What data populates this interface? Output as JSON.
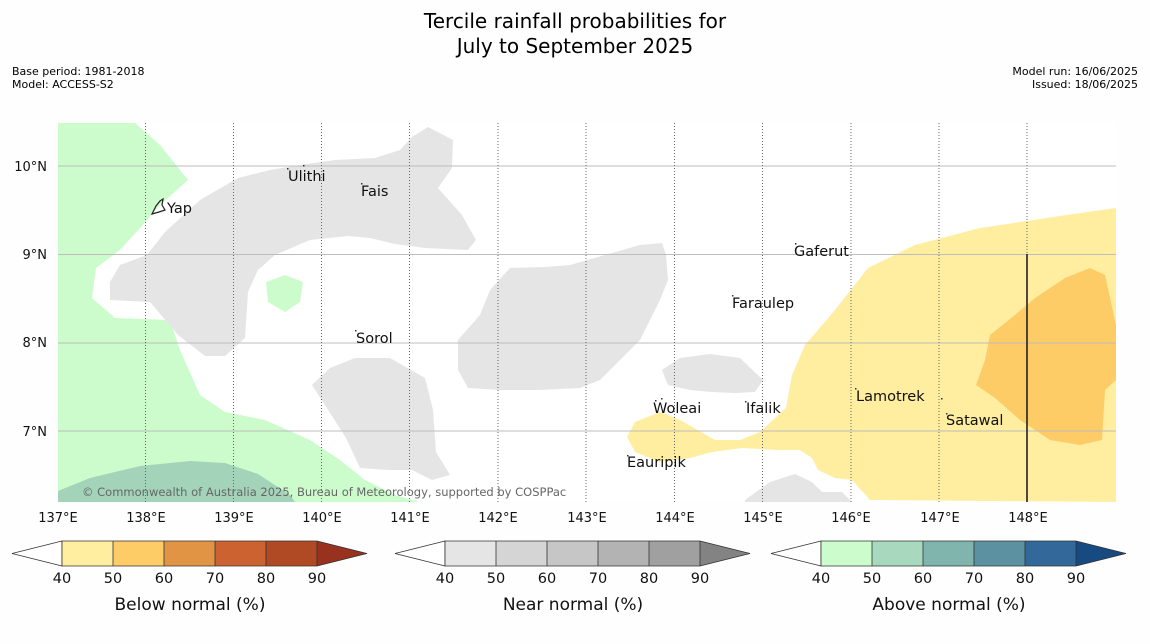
{
  "title": {
    "line1": "Tercile rainfall probabilities for",
    "line2": "July to September 2025"
  },
  "meta": {
    "base_period": "Base period: 1981-2018",
    "model": "Model: ACCESS-S2",
    "model_run": "Model run: 16/06/2025",
    "issued": "Issued: 18/06/2025"
  },
  "map": {
    "lat_labels": [
      "10°N",
      "9°N",
      "8°N",
      "7°N"
    ],
    "lon_labels": [
      "137°E",
      "138°E",
      "139°E",
      "140°E",
      "141°E",
      "142°E",
      "143°E",
      "144°E",
      "145°E",
      "146°E",
      "147°E",
      "148°E"
    ],
    "places": {
      "yap": "Yap",
      "ulithi": "Ulithi",
      "fais": "Fais",
      "sorol": "Sorol",
      "gaferut": "Gaferut",
      "faraulep": "Faraulep",
      "woleai": "Woleai",
      "ifalik": "Ifalik",
      "lamotrek": "Lamotrek",
      "satawal": "Satawal",
      "eauripik": "Eauripik"
    },
    "credit": "© Commonwealth of Australia 2025, Bureau of Meteorology, supported by COSPPac",
    "colors": {
      "below_40": "#ffeda0",
      "below_50": "#fecc66",
      "near": "#e5e5e5",
      "above_40": "#ccfccc",
      "above_50": "#a3d4b9"
    }
  },
  "colorbars": {
    "ticks": [
      "40",
      "50",
      "60",
      "70",
      "80",
      "90"
    ],
    "below": {
      "label": "Below normal (%)",
      "colors": [
        "#ffeda0",
        "#fecc66",
        "#e29445",
        "#cc6230",
        "#b04a25",
        "#98321e"
      ]
    },
    "near": {
      "label": "Near normal (%)",
      "colors": [
        "#e5e5e5",
        "#d5d5d5",
        "#c6c6c6",
        "#b3b3b3",
        "#a0a0a0",
        "#838383"
      ]
    },
    "above": {
      "label": "Above normal (%)",
      "colors": [
        "#ccfccc",
        "#a8d8bd",
        "#80b5ad",
        "#5b91a0",
        "#33689a",
        "#184a82"
      ]
    }
  }
}
